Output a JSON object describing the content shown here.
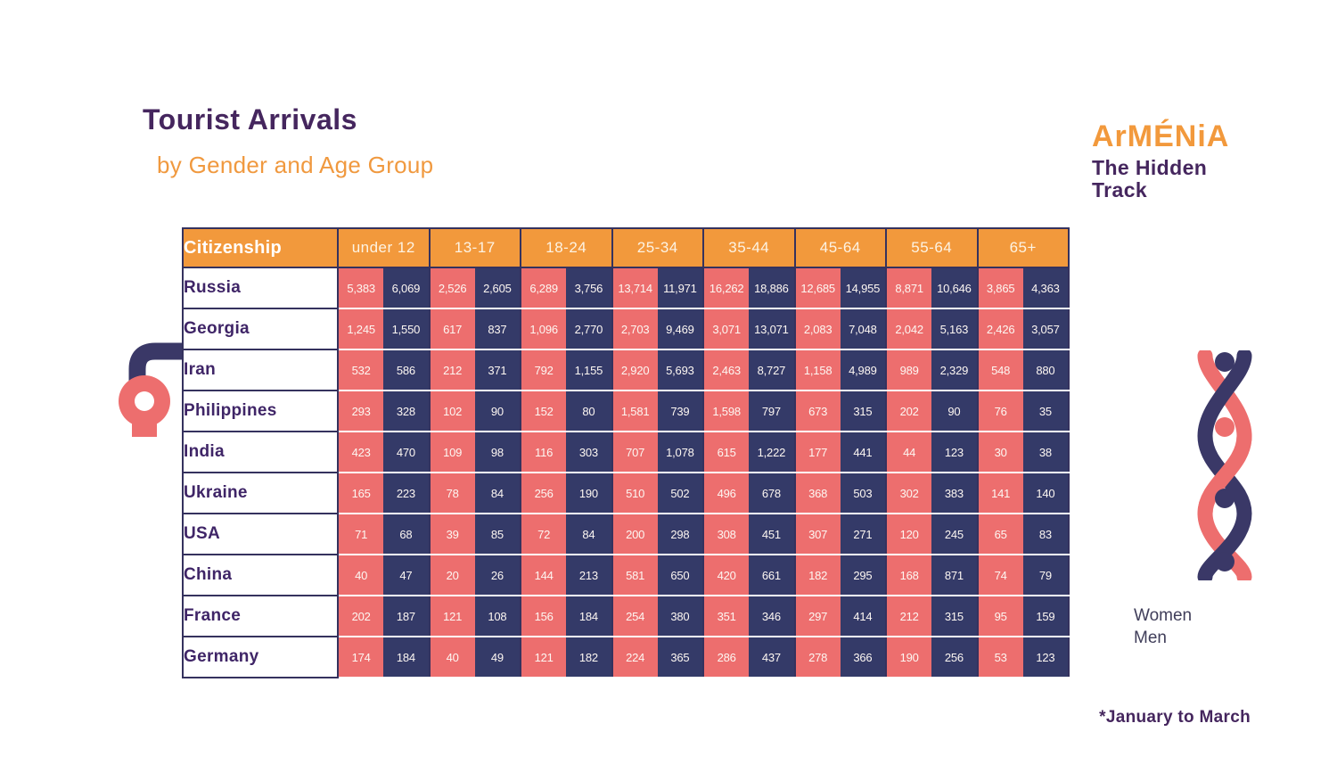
{
  "title": "Tourist Arrivals",
  "subtitle": "by Gender and Age Group",
  "logo": {
    "brand": "ArMÉNiA",
    "tagline": "The Hidden Track"
  },
  "colors": {
    "orange": "#F2993C",
    "women_pink": "#ED6E6E",
    "men_navy": "#343A68",
    "purple_text": "#45265E",
    "table_border": "#35325E"
  },
  "legend": {
    "items": [
      {
        "label": "Women",
        "color": "#ED6E6E"
      },
      {
        "label": "Men",
        "color": "#343A68"
      }
    ]
  },
  "footnote": "*January to March",
  "chart_data": {
    "type": "table",
    "title": "Tourist Arrivals by Gender and Age Group",
    "citizenship_header": "Citizenship",
    "age_groups": [
      "under 12",
      "13-17",
      "18-24",
      "25-34",
      "35-44",
      "45-64",
      "55-64",
      "65+"
    ],
    "series_order": [
      "Women",
      "Men"
    ],
    "rows": [
      {
        "country": "Russia",
        "values": [
          "5,383",
          "6,069",
          "2,526",
          "2,605",
          "6,289",
          "3,756",
          "13,714",
          "11,971",
          "16,262",
          "18,886",
          "12,685",
          "14,955",
          "8,871",
          "10,646",
          "3,865",
          "4,363"
        ]
      },
      {
        "country": "Georgia",
        "values": [
          "1,245",
          "1,550",
          "617",
          "837",
          "1,096",
          "2,770",
          "2,703",
          "9,469",
          "3,071",
          "13,071",
          "2,083",
          "7,048",
          "2,042",
          "5,163",
          "2,426",
          "3,057"
        ]
      },
      {
        "country": "Iran",
        "values": [
          "532",
          "586",
          "212",
          "371",
          "792",
          "1,155",
          "2,920",
          "5,693",
          "2,463",
          "8,727",
          "1,158",
          "4,989",
          "989",
          "2,329",
          "548",
          "880"
        ]
      },
      {
        "country": "Philippines",
        "values": [
          "293",
          "328",
          "102",
          "90",
          "152",
          "80",
          "1,581",
          "739",
          "1,598",
          "797",
          "673",
          "315",
          "202",
          "90",
          "76",
          "35"
        ]
      },
      {
        "country": "India",
        "values": [
          "423",
          "470",
          "109",
          "98",
          "116",
          "303",
          "707",
          "1,078",
          "615",
          "1,222",
          "177",
          "441",
          "44",
          "123",
          "30",
          "38"
        ]
      },
      {
        "country": "Ukraine",
        "values": [
          "165",
          "223",
          "78",
          "84",
          "256",
          "190",
          "510",
          "502",
          "496",
          "678",
          "368",
          "503",
          "302",
          "383",
          "141",
          "140"
        ]
      },
      {
        "country": "USA",
        "values": [
          "71",
          "68",
          "39",
          "85",
          "72",
          "84",
          "200",
          "298",
          "308",
          "451",
          "307",
          "271",
          "120",
          "245",
          "65",
          "83"
        ]
      },
      {
        "country": "China",
        "values": [
          "40",
          "47",
          "20",
          "26",
          "144",
          "213",
          "581",
          "650",
          "420",
          "661",
          "182",
          "295",
          "168",
          "871",
          "74",
          "79"
        ]
      },
      {
        "country": "France",
        "values": [
          "202",
          "187",
          "121",
          "108",
          "156",
          "184",
          "254",
          "380",
          "351",
          "346",
          "297",
          "414",
          "212",
          "315",
          "95",
          "159"
        ]
      },
      {
        "country": "Germany",
        "values": [
          "174",
          "184",
          "40",
          "49",
          "121",
          "182",
          "224",
          "365",
          "286",
          "437",
          "278",
          "366",
          "190",
          "256",
          "53",
          "123"
        ]
      }
    ]
  }
}
